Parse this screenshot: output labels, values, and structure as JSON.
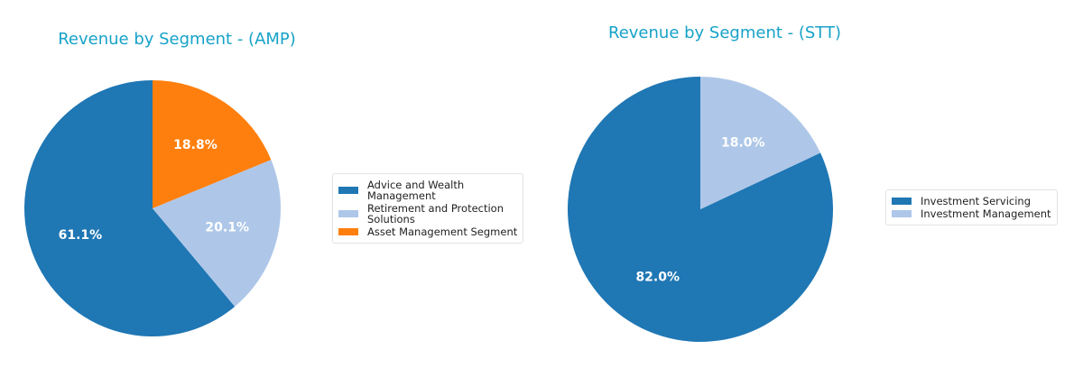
{
  "chart_data": [
    {
      "type": "pie",
      "title": "Revenue by Segment - (AMP)",
      "categories": [
        "Advice and Wealth Management",
        "Retirement and Protection Solutions",
        "Asset Management Segment"
      ],
      "values": [
        61.1,
        20.1,
        18.8
      ],
      "labels": [
        "61.1%",
        "20.1%",
        "18.8%"
      ],
      "colors": [
        "#1f77b4",
        "#aec7e8",
        "#ff7f0e"
      ],
      "legend_position": "right",
      "start_angle": 90
    },
    {
      "type": "pie",
      "title": "Revenue by Segment - (STT)",
      "categories": [
        "Investment Servicing",
        "Investment Management"
      ],
      "values": [
        82.0,
        18.0
      ],
      "labels": [
        "82.0%",
        "18.0%"
      ],
      "colors": [
        "#1f77b4",
        "#aec7e8"
      ],
      "legend_position": "right",
      "start_angle": 90
    }
  ],
  "charts": {
    "amp": {
      "title": "Revenue by Segment - (AMP)",
      "legend": [
        "Advice and Wealth\nManagement",
        "Retirement and Protection\nSolutions",
        "Asset Management Segment"
      ]
    },
    "stt": {
      "title": "Revenue by Segment - (STT)",
      "legend": [
        "Investment Servicing",
        "Investment Management"
      ]
    }
  },
  "colors": {
    "title": "#17a2c8",
    "label_text": "#ffffff"
  }
}
